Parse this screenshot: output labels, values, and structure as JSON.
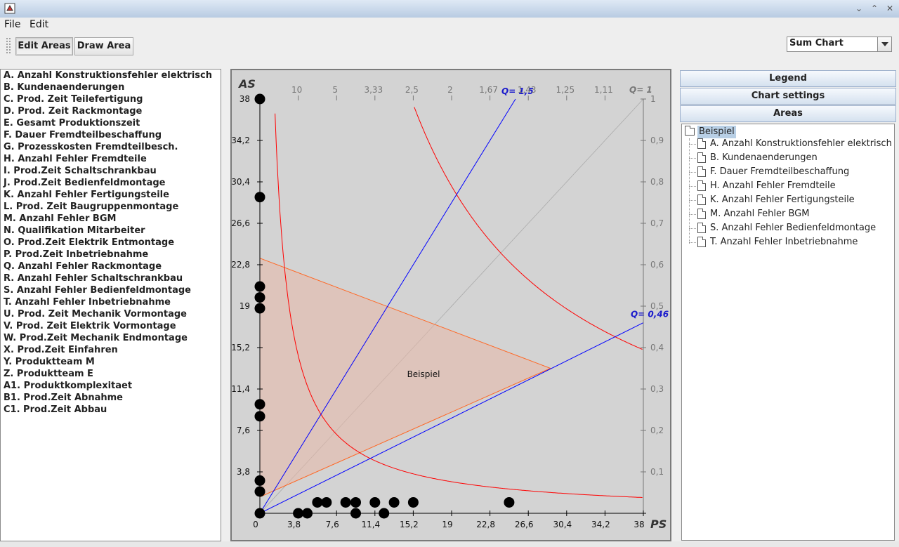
{
  "window": {
    "title": ""
  },
  "menu": {
    "file": "File",
    "edit": "Edit"
  },
  "toolbar": {
    "edit_areas": "Edit Areas",
    "draw_area": "Draw Area",
    "chart_select": "Sum Chart"
  },
  "attributes": [
    "A. Anzahl Konstruktionsfehler elektrisch",
    "B. Kundenaenderungen",
    "C. Prod. Zeit Teilefertigung",
    "D. Prod. Zeit Rackmontage",
    "E. Gesamt Produktionszeit",
    "F. Dauer Fremdteilbeschaffung",
    "G. Prozesskosten Fremdteilbesch.",
    "H. Anzahl Fehler Fremdteile",
    "I. Prod.Zeit Schaltschrankbau",
    "J. Prod.Zeit Bedienfeldmontage",
    "K. Anzahl Fehler Fertigungsteile",
    "L. Prod. Zeit Baugruppenmontage",
    "M. Anzahl Fehler BGM",
    "N. Qualifikation Mitarbeiter",
    "O. Prod.Zeit Elektrik Entmontage",
    "P. Prod.Zeit Inbetriebnahme",
    "Q. Anzahl Fehler Rackmontage",
    "R. Anzahl Fehler Schaltschrankbau",
    "S. Anzahl Fehler Bedienfeldmontage",
    "T. Anzahl Fehler Inbetriebnahme",
    "U. Prod. Zeit Mechanik Vormontage",
    "V. Prod. Zeit Elektrik Vormontage",
    "W. Prod.Zeit Mechanik Endmontage",
    "X. Prod.Zeit Einfahren",
    "Y. Produktteam M",
    "Z. Produktteam E",
    "A1. Produktkomplexitaet",
    "B1. Prod.Zeit Abnahme",
    "C1. Prod.Zeit Abbau"
  ],
  "right_panel": {
    "legend": "Legend",
    "chart_settings": "Chart settings",
    "areas": "Areas",
    "tree_root": "Beispiel",
    "tree_items": [
      "A. Anzahl Konstruktionsfehler elektrisch",
      "B. Kundenaenderungen",
      "F. Dauer Fremdteilbeschaffung",
      "H. Anzahl Fehler Fremdteile",
      "K. Anzahl Fehler Fertigungsteile",
      "M. Anzahl Fehler BGM",
      "S. Anzahl Fehler Bedienfeldmontage",
      "T. Anzahl Fehler Inbetriebnahme"
    ]
  },
  "colors": {
    "background": "#d3d3d3",
    "curve": "#ff0000",
    "line": "#0000ff",
    "area_fill": "#e8b8a8",
    "area_edge": "#ff6622",
    "point": "#000000"
  },
  "chart_data": {
    "type": "scatter",
    "xlabel": "PS",
    "ylabel": "AS",
    "xlim": [
      0,
      38
    ],
    "ylim": [
      0,
      38
    ],
    "x_ticks": [
      "0",
      "3,8",
      "7,6",
      "11,4",
      "15,2",
      "19",
      "22,8",
      "26,6",
      "30,4",
      "34,2",
      "38"
    ],
    "y_ticks": [
      "3,8",
      "7,6",
      "11,4",
      "15,2",
      "19",
      "22,8",
      "26,6",
      "30,4",
      "34,2",
      "38"
    ],
    "q_right_ticks": [
      "0,1",
      "0,2",
      "0,3",
      "0,4",
      "0,5",
      "0,6",
      "0,7",
      "0,8",
      "0,9",
      "1"
    ],
    "q_top_ticks": [
      {
        "label": "10",
        "x": 3.8
      },
      {
        "label": "5",
        "x": 7.6
      },
      {
        "label": "3,33",
        "x": 11.4
      },
      {
        "label": "2,5",
        "x": 15.2
      },
      {
        "label": "2",
        "x": 19
      },
      {
        "label": "1,67",
        "x": 22.8
      },
      {
        "label": "1,43",
        "x": 26.6
      },
      {
        "label": "1,25",
        "x": 30.4
      },
      {
        "label": "1,11",
        "x": 34.2
      }
    ],
    "q_one_label": "Q= 1",
    "q_lines": [
      {
        "label": "Q= 1,5",
        "slope": 1.5
      },
      {
        "label": "Q= 0,46",
        "slope": 0.46
      }
    ],
    "hyperbolas": [
      {
        "k": 55
      },
      {
        "k": 570
      }
    ],
    "area": {
      "name": "Beispiel",
      "polygon": [
        [
          0,
          1.5
        ],
        [
          0,
          23.4
        ],
        [
          28.8,
          13.3
        ]
      ]
    },
    "points": [
      [
        0,
        38
      ],
      [
        0,
        29
      ],
      [
        0,
        20.8
      ],
      [
        0,
        19.8
      ],
      [
        0,
        18.8
      ],
      [
        0,
        10
      ],
      [
        0,
        8.9
      ],
      [
        0,
        3
      ],
      [
        0,
        2
      ],
      [
        0,
        0
      ],
      [
        3.8,
        0
      ],
      [
        4.7,
        0
      ],
      [
        5.7,
        1
      ],
      [
        6.6,
        1
      ],
      [
        8.5,
        1
      ],
      [
        9.5,
        1
      ],
      [
        9.5,
        0
      ],
      [
        11.4,
        1
      ],
      [
        12.3,
        0
      ],
      [
        13.3,
        1
      ],
      [
        15.2,
        1
      ],
      [
        24.7,
        1
      ]
    ]
  }
}
